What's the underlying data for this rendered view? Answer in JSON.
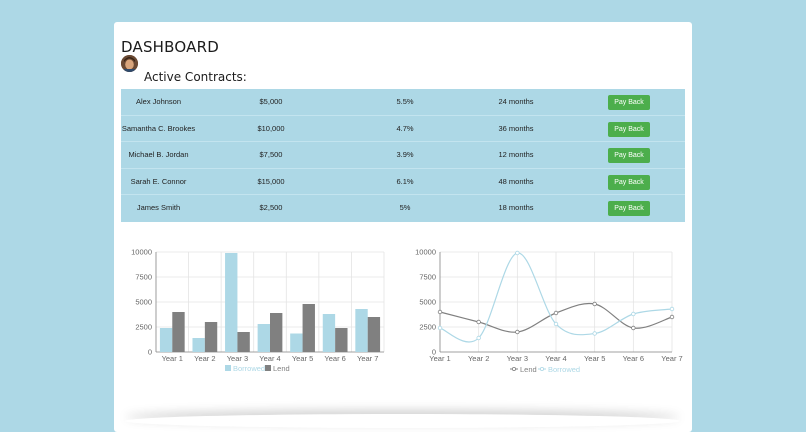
{
  "header": {
    "title": "DASHBOARD",
    "section_title": "Active Contracts:"
  },
  "contracts": [
    {
      "name": "Alex Johnson",
      "amount": "$5,000",
      "rate": "5.5%",
      "term": "24 months",
      "action": "Pay Back"
    },
    {
      "name": "Samantha C. Brookes",
      "amount": "$10,000",
      "rate": "4.7%",
      "term": "36 months",
      "action": "Pay Back"
    },
    {
      "name": "Michael B. Jordan",
      "amount": "$7,500",
      "rate": "3.9%",
      "term": "12 months",
      "action": "Pay Back"
    },
    {
      "name": "Sarah E. Connor",
      "amount": "$15,000",
      "rate": "6.1%",
      "term": "48 months",
      "action": "Pay Back"
    },
    {
      "name": "James Smith",
      "amount": "$2,500",
      "rate": "5%",
      "term": "18 months",
      "action": "Pay Back"
    }
  ],
  "colors": {
    "background": "#add8e6",
    "borrowed": "#add8e6",
    "lend": "#808080",
    "button": "#4cae4c"
  },
  "chart_data": [
    {
      "type": "bar",
      "categories": [
        "Year 1",
        "Year 2",
        "Year 3",
        "Year 4",
        "Year 5",
        "Year 6",
        "Year 7"
      ],
      "series": [
        {
          "name": "Borrowed",
          "values": [
            2400,
            1400,
            9900,
            2800,
            1850,
            3800,
            4300
          ],
          "color": "#add8e6"
        },
        {
          "name": "Lend",
          "values": [
            4000,
            3000,
            2000,
            3900,
            4800,
            2400,
            3500
          ],
          "color": "#808080"
        }
      ],
      "yticks": [
        0,
        2500,
        5000,
        7500,
        10000
      ],
      "ylim": [
        0,
        10000
      ],
      "grid": true,
      "legend": "bottom"
    },
    {
      "type": "line",
      "categories": [
        "Year 1",
        "Year 2",
        "Year 3",
        "Year 4",
        "Year 5",
        "Year 6",
        "Year 7"
      ],
      "series": [
        {
          "name": "Lend",
          "values": [
            4000,
            3000,
            2000,
            3900,
            4800,
            2400,
            3500
          ],
          "color": "#808080"
        },
        {
          "name": "Borrowed",
          "values": [
            2400,
            1400,
            9900,
            2800,
            1850,
            3800,
            4300
          ],
          "color": "#add8e6"
        }
      ],
      "yticks": [
        0,
        2500,
        5000,
        7500,
        10000
      ],
      "ylim": [
        0,
        10000
      ],
      "grid": true,
      "legend": "bottom"
    }
  ]
}
